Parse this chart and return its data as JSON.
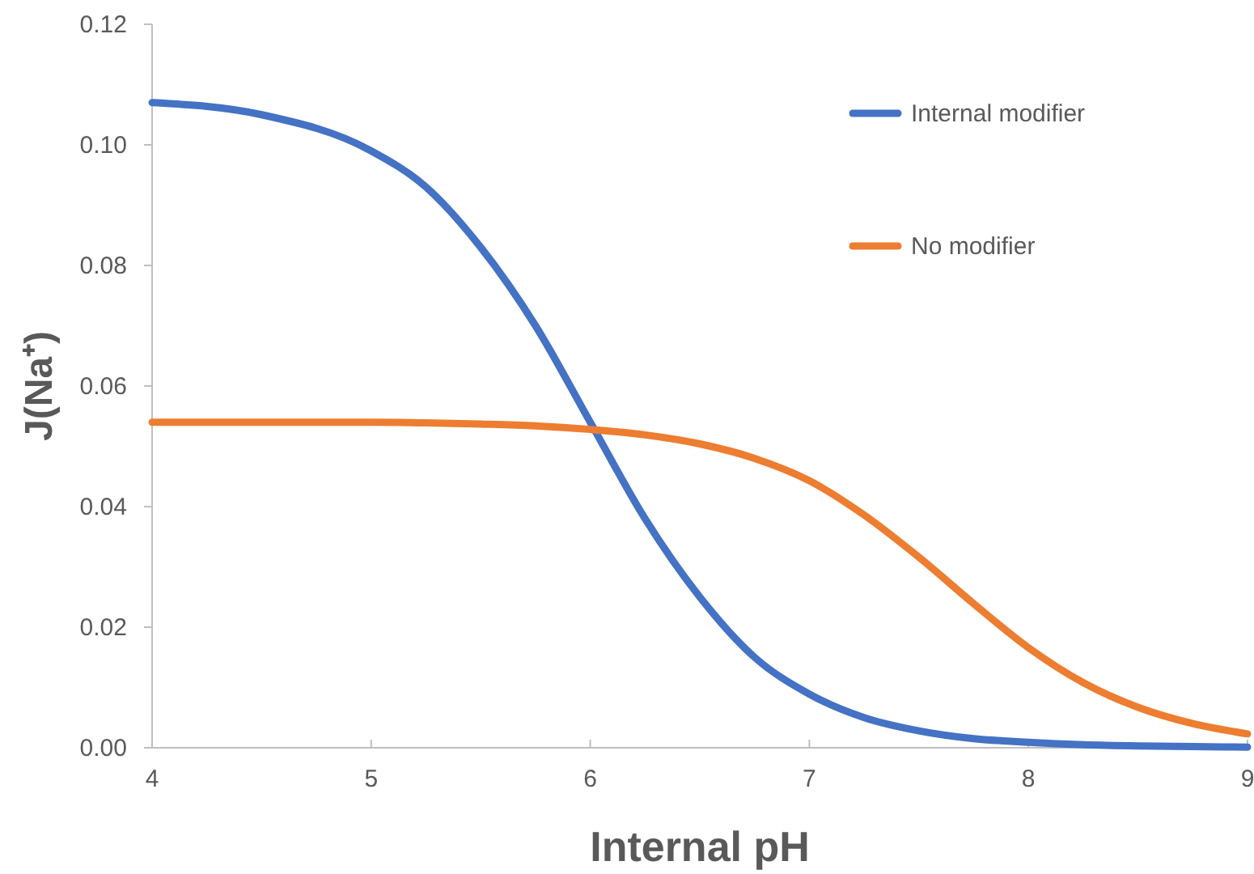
{
  "chart_data": {
    "type": "line",
    "xlabel": "Internal pH",
    "ylabel": "J(Na⁺)",
    "x": [
      4,
      4.5,
      5,
      5.25,
      5.5,
      5.75,
      6,
      6.25,
      6.5,
      6.75,
      7,
      7.25,
      7.5,
      7.75,
      8,
      8.25,
      8.5,
      8.75,
      9
    ],
    "series": [
      {
        "name": "Internal modifier",
        "color": "#4472c4",
        "values": [
          0.107,
          0.105,
          0.099,
          0.093,
          0.083,
          0.07,
          0.054,
          0.038,
          0.025,
          0.015,
          0.0089,
          0.005,
          0.0028,
          0.0015,
          0.0009,
          0.0005,
          0.0003,
          0.0002,
          0.0001
        ]
      },
      {
        "name": "No modifier",
        "color": "#ed7d31",
        "values": [
          0.054,
          0.054,
          0.054,
          0.0539,
          0.0537,
          0.0534,
          0.0528,
          0.0519,
          0.0504,
          0.048,
          0.0443,
          0.0386,
          0.0316,
          0.0239,
          0.0166,
          0.0108,
          0.0067,
          0.004,
          0.0023
        ]
      }
    ],
    "xlim": [
      4,
      9
    ],
    "xticks": [
      4,
      5,
      6,
      7,
      8,
      9
    ],
    "ylim": [
      0,
      0.12
    ],
    "yticks": [
      {
        "value": 0,
        "label": "0.00"
      },
      {
        "value": 0.02,
        "label": "0.02"
      },
      {
        "value": 0.04,
        "label": "0.04"
      },
      {
        "value": 0.06,
        "label": "0.06"
      },
      {
        "value": 0.08,
        "label": "0.08"
      },
      {
        "value": 0.1,
        "label": "0.10"
      },
      {
        "value": 0.12,
        "label": "0.12"
      }
    ],
    "grid": false,
    "legend": "top right",
    "marker": "none",
    "line_style": "solid"
  }
}
